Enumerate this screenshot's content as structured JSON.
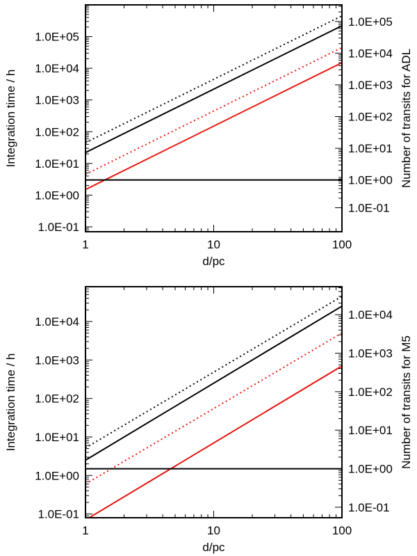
{
  "chart_data": [
    {
      "type": "line",
      "xlabel": "d/pc",
      "ylabel": "Integration time / h",
      "y2label": "Number of transits for ADL",
      "xscale": "log",
      "yscale": "log",
      "xlim": [
        1,
        100
      ],
      "ylim": [
        0.07,
        1000000
      ],
      "y2lim": [
        0.07,
        1000000
      ],
      "xticks": [
        {
          "value": 1,
          "label": "1"
        },
        {
          "value": 10,
          "label": "10"
        },
        {
          "value": 100,
          "label": "100"
        }
      ],
      "yticks": [
        {
          "value": 0.1,
          "label": "1.0E-01"
        },
        {
          "value": 1,
          "label": "1.0E+00"
        },
        {
          "value": 10,
          "label": "1.0E+01"
        },
        {
          "value": 100,
          "label": "1.0E+02"
        },
        {
          "value": 1000,
          "label": "1.0E+03"
        },
        {
          "value": 10000,
          "label": "1.0E+04"
        },
        {
          "value": 100000,
          "label": "1.0E+05"
        }
      ],
      "y2ticks": [
        {
          "value": 0.4,
          "label": "1.0E-01"
        },
        {
          "value": 3.0,
          "label": "1.0E+00"
        },
        {
          "value": 30,
          "label": "1.0E+01"
        },
        {
          "value": 300,
          "label": "1.0E+02"
        },
        {
          "value": 3000,
          "label": "1.0E+03"
        },
        {
          "value": 30000,
          "label": "1.0E+04"
        },
        {
          "value": 300000,
          "label": "1.0E+05"
        }
      ],
      "series": [
        {
          "x": [
            1,
            100
          ],
          "y": [
            45,
            450000
          ],
          "color": "#000000",
          "style": "dotted"
        },
        {
          "x": [
            1,
            100
          ],
          "y": [
            22,
            220000
          ],
          "color": "#000000",
          "style": "solid"
        },
        {
          "x": [
            1,
            100
          ],
          "y": [
            4.5,
            45000
          ],
          "color": "#e8140e",
          "style": "dotted"
        },
        {
          "x": [
            1,
            100
          ],
          "y": [
            1.5,
            15000
          ],
          "color": "#e8140e",
          "style": "solid"
        },
        {
          "x": [
            1,
            100
          ],
          "y": [
            3.0,
            3.0
          ],
          "color": "#000000",
          "style": "solid"
        }
      ]
    },
    {
      "type": "line",
      "xlabel": "d/pc",
      "ylabel": "Integration time / h",
      "y2label": "Number of transits for M5",
      "xscale": "log",
      "yscale": "log",
      "xlim": [
        1,
        100
      ],
      "ylim": [
        0.08,
        80000
      ],
      "y2lim": [
        0.08,
        80000
      ],
      "xticks": [
        {
          "value": 1,
          "label": "1"
        },
        {
          "value": 10,
          "label": "10"
        },
        {
          "value": 100,
          "label": "100"
        }
      ],
      "yticks": [
        {
          "value": 0.1,
          "label": "1.0E-01"
        },
        {
          "value": 1,
          "label": "1.0E+00"
        },
        {
          "value": 10,
          "label": "1.0E+01"
        },
        {
          "value": 100,
          "label": "1.0E+02"
        },
        {
          "value": 1000,
          "label": "1.0E+03"
        },
        {
          "value": 10000,
          "label": "1.0E+04"
        }
      ],
      "y2ticks": [
        {
          "value": 0.15,
          "label": "1.0E-01"
        },
        {
          "value": 1.5,
          "label": "1.0E+00"
        },
        {
          "value": 15,
          "label": "1.0E+01"
        },
        {
          "value": 150,
          "label": "1.0E+02"
        },
        {
          "value": 1500,
          "label": "1.0E+03"
        },
        {
          "value": 15000,
          "label": "1.0E+04"
        }
      ],
      "series": [
        {
          "x": [
            1,
            100
          ],
          "y": [
            5.2,
            45000
          ],
          "color": "#000000",
          "style": "dotted"
        },
        {
          "x": [
            1,
            100
          ],
          "y": [
            2.5,
            25000
          ],
          "color": "#000000",
          "style": "solid"
        },
        {
          "x": [
            1,
            100
          ],
          "y": [
            0.6,
            5000
          ],
          "color": "#e8140e",
          "style": "dotted"
        },
        {
          "x": [
            1,
            100
          ],
          "y": [
            0.07,
            700
          ],
          "color": "#e8140e",
          "style": "solid"
        },
        {
          "x": [
            1,
            100
          ],
          "y": [
            1.5,
            1.5
          ],
          "color": "#000000",
          "style": "solid"
        }
      ]
    }
  ]
}
